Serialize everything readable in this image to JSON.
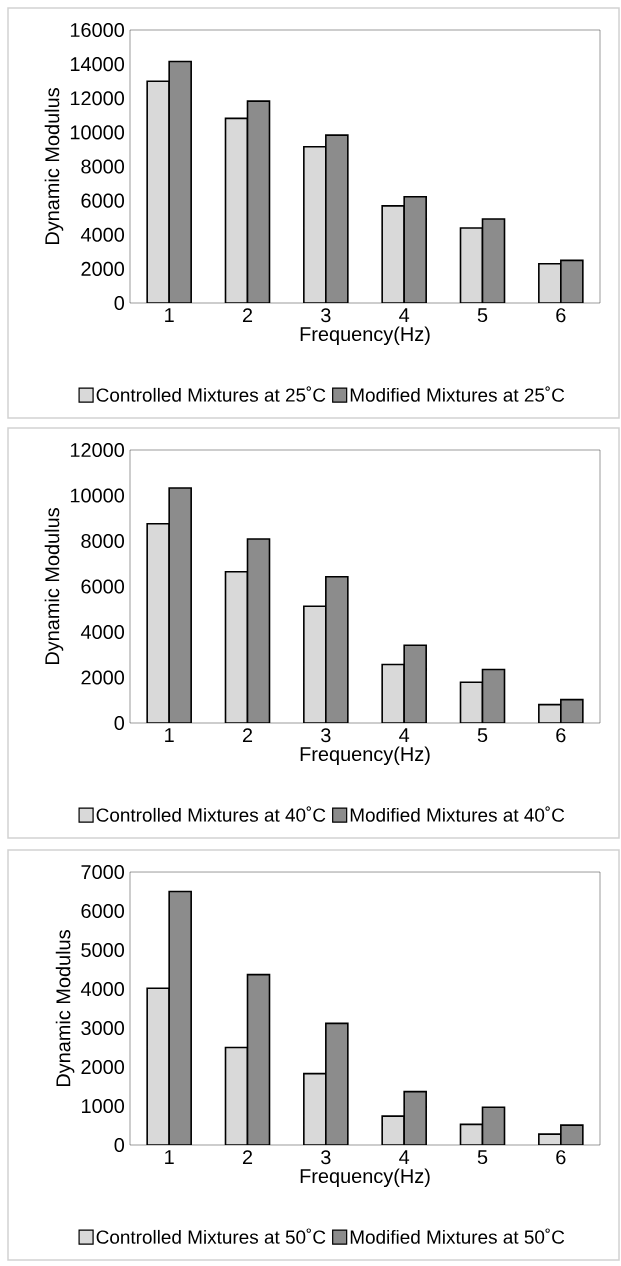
{
  "chart_data": [
    {
      "type": "bar",
      "xlabel": "Frequency(Hz)",
      "ylabel": "Dynamic Modulus",
      "categories": [
        "1",
        "2",
        "3",
        "4",
        "5",
        "6"
      ],
      "ylim": [
        0,
        16000
      ],
      "yticks": [
        0,
        2000,
        4000,
        6000,
        8000,
        10000,
        12000,
        14000,
        16000
      ],
      "legend": "bottom",
      "series": [
        {
          "name": "Controlled Mixtures at 25˚C",
          "color": "#d9d9d9",
          "values": [
            13000,
            10820,
            9160,
            5690,
            4400,
            2300
          ]
        },
        {
          "name": "Modified Mixtures at 25˚C",
          "color": "#8c8c8c",
          "values": [
            14150,
            11830,
            9840,
            6230,
            4920,
            2500
          ]
        }
      ]
    },
    {
      "type": "bar",
      "xlabel": "Frequency(Hz)",
      "ylabel": "Dynamic Modulus",
      "categories": [
        "1",
        "2",
        "3",
        "4",
        "5",
        "6"
      ],
      "ylim": [
        0,
        12000
      ],
      "yticks": [
        0,
        2000,
        4000,
        6000,
        8000,
        10000,
        12000
      ],
      "legend": "bottom",
      "series": [
        {
          "name": "Controlled Mixtures at 40˚C",
          "color": "#d9d9d9",
          "values": [
            8760,
            6650,
            5130,
            2570,
            1790,
            810
          ]
        },
        {
          "name": "Modified Mixtures at 40˚C",
          "color": "#8c8c8c",
          "values": [
            10330,
            8090,
            6430,
            3420,
            2350,
            1030
          ]
        }
      ]
    },
    {
      "type": "bar",
      "xlabel": "Frequency(Hz)",
      "ylabel": "Dynamic Modulus",
      "categories": [
        "1",
        "2",
        "3",
        "4",
        "5",
        "6"
      ],
      "ylim": [
        0,
        7000
      ],
      "yticks": [
        0,
        1000,
        2000,
        3000,
        4000,
        5000,
        6000,
        7000
      ],
      "legend": "bottom",
      "series": [
        {
          "name": "Controlled Mixtures at 50˚C",
          "color": "#d9d9d9",
          "values": [
            4020,
            2500,
            1830,
            740,
            530,
            280
          ]
        },
        {
          "name": "Modified Mixtures at 50˚C",
          "color": "#8c8c8c",
          "values": [
            6500,
            4370,
            3120,
            1370,
            970,
            510
          ]
        }
      ]
    }
  ]
}
